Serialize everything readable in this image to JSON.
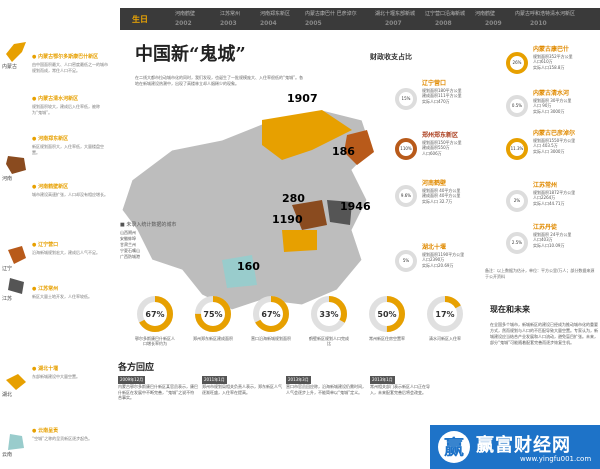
{
  "timeline": {
    "label": "生日",
    "events": [
      "河南鹤壁",
      "江苏常州",
      "河南郑东新区",
      "内蒙古康巴什 巴彦淖尔",
      "湖北十堰东部新城",
      "辽宁营口沿海新城",
      "河南鹤壁",
      "内蒙古呼和浩特清水河新区"
    ],
    "years": [
      "2002",
      "2003",
      "2004",
      "2005",
      "2007",
      "2008",
      "2009",
      "2010"
    ]
  },
  "title": "中国新“鬼城”",
  "intro": "在二线大都市拉动城市化的同时，我们发现，也诞生了一批规模庞大、入住率很低的“鬼城”。各地在新城建设热潮中，出现了高楼林立却人烟稀少的现象。",
  "sidebar": {
    "provinces": [
      "内蒙古",
      "河南",
      "辽宁",
      "江苏",
      "湖北",
      "云南"
    ],
    "sections": [
      {
        "head": "● 内蒙古鄂尔多斯康巴什新区",
        "text": "由中国面积最大、人口密度最低之一的城市规划而成，常住人口不足。"
      },
      {
        "head": "● 内蒙古清水河新区",
        "text": "规划面积较大，建成后入住率低，被称为“鬼城”。"
      },
      {
        "head": "● 河南郑东新区",
        "text": "新区规划面积大，入住率低，大量楼盘空置。"
      },
      {
        "head": "● 河南鹤壁新区",
        "text": "城市建设高速扩张，人口却没有相应增长。"
      },
      {
        "head": "● 辽宁营口",
        "text": "沿海新城规划宏大，建成后人气不足。"
      },
      {
        "head": "● 江苏常州",
        "text": "新区大量土地开发，人住率较低。"
      },
      {
        "head": "● 湖北十堰",
        "text": "东部新城建设中大量空置。"
      },
      {
        "head": "● 云南呈贡",
        "text": "“空城”之称的呈贡新区逐步起色。"
      }
    ]
  },
  "map": {
    "numbers": [
      "1907",
      "186",
      "280",
      "1946",
      "1190",
      "160"
    ],
    "legend_head": "■ 未录入统计数据的城市",
    "legend_items": [
      "山西朔州",
      "安徽蚌埠",
      "甘肃兰州",
      "宁夏石嘴山",
      "广西防城港"
    ]
  },
  "finance": {
    "title": "财政收支占比",
    "regions": [
      {
        "name": "辽宁营口",
        "pct": "15%",
        "lines": [
          "规划面积180平方公里",
          "建成面积111平方公里",
          "实际人口470万"
        ]
      },
      {
        "name": "郑州郑东新区",
        "pct": "110%",
        "lines": [
          "规划面积150平方公里",
          "建成面积550万",
          "人口606万"
        ]
      },
      {
        "name": "河南鹤壁",
        "pct": "9.6%",
        "lines": [
          "规划面积 40平方公里",
          "建成面积 40平方公里",
          "实际人口 32.7万"
        ]
      },
      {
        "name": "湖北十堰",
        "pct": "5%",
        "lines": [
          "规划面积1190平方公里",
          "人口2390万",
          "实际人口20.69万"
        ]
      },
      {
        "name": "内蒙古康巴什",
        "pct": "26%",
        "lines": [
          "规划面积352平方公里",
          "人口610万",
          "实际人口158.8万"
        ]
      },
      {
        "name": "内蒙古清水河",
        "pct": "0.5%",
        "lines": [
          "规划面积 30平方公里",
          "人口 90万",
          "实际人口 3000万"
        ]
      },
      {
        "name": "内蒙古巴彦淖尔",
        "pct": "11.3%",
        "lines": [
          "规划面积1550平方公里",
          "人口 403.5万",
          "实际人口 3000万"
        ]
      },
      {
        "name": "江苏常州",
        "pct": "2%",
        "lines": [
          "规划面积1872平方公里",
          "人口2264万",
          "实际人口44.71万"
        ]
      },
      {
        "name": "江苏丹徒",
        "pct": "2.5%",
        "lines": [
          "规划面积 24平方公里",
          "人口403万",
          "实际人口10.09万"
        ]
      }
    ],
    "note": "备注：以上数据为估计，单位：平方公里/万人；部分数据来源于公开资料"
  },
  "donuts": [
    {
      "pct": "67%",
      "cap": "鄂尔多斯康巴什新区人口增长率约为"
    },
    {
      "pct": "75%",
      "cap": "郑州郑东新区建成面积"
    },
    {
      "pct": "67%",
      "cap": "营口沿海新城规划面积"
    },
    {
      "pct": "33%",
      "cap": "鹤壁新区规划人口完成比"
    },
    {
      "pct": "50%",
      "cap": "常州新区住房空置率"
    },
    {
      "pct": "17%",
      "cap": "清水河新区入住率"
    }
  ],
  "chart_data": {
    "type": "pie",
    "categories": [
      "鄂尔多斯康巴什新区人口增长率约为",
      "郑州郑东新区建成面积",
      "营口沿海新城规划面积",
      "鹤壁新区规划人口完成比",
      "常州新区住房空置率",
      "清水河新区入住率"
    ],
    "values": [
      67,
      75,
      67,
      33,
      50,
      17
    ]
  },
  "review": {
    "title": "各方回应",
    "cols": [
      {
        "date": "2009年12月",
        "text": "内蒙古鄂尔多斯康巴什新区某官员表示，康巴什新区在发展中不断完善，“鬼城”之说不符合事实。"
      },
      {
        "date": "2011年1月",
        "text": "郑州市规划局相关负责人表示，郑东新区人气逐渐旺盛，入住率在提高。"
      },
      {
        "date": "2013年3月",
        "text": "营口市官员回应称，沿海新城建设仍需时间，人气会逐步上升，不能简单以“鬼城”定义。"
      },
      {
        "date": "2013年1月",
        "text": "常州相关部门表示新区人口正在导入，未来配套完善后将会改变。"
      }
    ]
  },
  "future": {
    "title": "现在和未来",
    "text": "在全国多个城市，新城新区的建设已经成为推动城市化的重要方式，然而规划与人口的不匹配导致大量空置。专家认为，新城建设应当结合产业发展和人口流动，避免盲目扩张。未来，部分“鬼城”可能随着配套完善而逐步恢复生机。"
  },
  "watermark": {
    "logo": "赢",
    "text": "赢富财经网",
    "url": "www.yingfu001.com"
  },
  "colors": {
    "accent": "#e7a000",
    "rust": "#b85a1a",
    "map": "#bdbdbd",
    "timeline": "#3a3a3a",
    "watermark": "#1e73c8"
  }
}
